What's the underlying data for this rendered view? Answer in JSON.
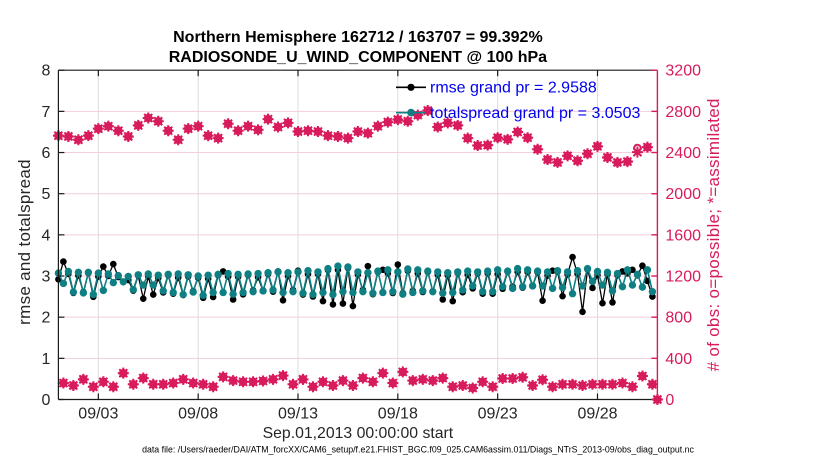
{
  "figure": {
    "title_line1": "Northern Hemisphere 162712 / 163707 = 99.392%",
    "title_line2": "RADIOSONDE_U_WIND_COMPONENT @ 100 hPa",
    "xlabel": "Sep.01,2013 00:00:00 start",
    "ylabel_left": "rmse and totalspread",
    "ylabel_right": "# of obs: o=possible; *=assimilated",
    "footer": "data file: /Users/raeder/DAI/ATM_forcXX/CAM6_setup/f.e21.FHIST_BGC.f09_025.CAM6assim.011/Diags_NTrS_2013-09/obs_diag_output.nc",
    "legend": [
      {
        "label": "rmse grand pr = 2.9588",
        "series": "rmse"
      },
      {
        "label": "totalspread grand pr = 3.0503",
        "series": "totalspread"
      }
    ],
    "colors": {
      "rmse": "#000000",
      "totalspread": "#0e7f83",
      "obs": "#d81b5c",
      "legend_text": "#0000f0",
      "grid_y": "#f5cddb",
      "grid_x": "#dcdcdc",
      "axis": "#1a1a1a",
      "text": "#262626"
    }
  },
  "chart_data": {
    "type": "line",
    "title": "Northern Hemisphere 162712 / 163707 = 99.392%",
    "subtitle": "RADIOSONDE_U_WIND_COMPONENT @ 100 hPa",
    "xlabel": "Sep.01,2013 00:00:00 start",
    "x_axis": {
      "units": "days since Sep.01,2013 00:00:00",
      "range": [
        0,
        30
      ],
      "ticks": [
        2,
        7,
        12,
        17,
        22,
        27
      ],
      "tick_labels": [
        "09/03",
        "09/08",
        "09/13",
        "09/18",
        "09/23",
        "09/28"
      ]
    },
    "y_left": {
      "label": "rmse and totalspread",
      "range": [
        0,
        8
      ],
      "ticks": [
        0,
        1,
        2,
        3,
        4,
        5,
        6,
        7,
        8
      ],
      "grid": true
    },
    "y_right": {
      "label": "# of obs: o=possible; *=assimilated",
      "range": [
        0,
        3200
      ],
      "ticks": [
        0,
        400,
        800,
        1200,
        1600,
        2000,
        2400,
        2800,
        3200
      ]
    },
    "legend_position": "top-center-inside",
    "series": [
      {
        "name": "rmse",
        "grand_pr": 2.9588,
        "axis": "left",
        "color": "#000000",
        "marker": "filled-circle",
        "line": true,
        "t_days": [
          0.0,
          0.25,
          0.5,
          0.75,
          1.0,
          1.25,
          1.5,
          1.75,
          2.0,
          2.25,
          2.5,
          2.75,
          3.0,
          3.25,
          3.5,
          3.75,
          4.0,
          4.25,
          4.5,
          4.75,
          5.0,
          5.25,
          5.5,
          5.75,
          6.0,
          6.25,
          6.5,
          6.75,
          7.0,
          7.25,
          7.5,
          7.75,
          8.0,
          8.25,
          8.5,
          8.75,
          9.0,
          9.25,
          9.5,
          9.75,
          10.0,
          10.25,
          10.5,
          10.75,
          11.0,
          11.25,
          11.5,
          11.75,
          12.0,
          12.25,
          12.5,
          12.75,
          13.0,
          13.25,
          13.5,
          13.75,
          14.0,
          14.25,
          14.5,
          14.75,
          15.0,
          15.25,
          15.5,
          15.75,
          16.0,
          16.25,
          16.5,
          16.75,
          17.0,
          17.25,
          17.5,
          17.75,
          18.0,
          18.25,
          18.5,
          18.75,
          19.0,
          19.25,
          19.5,
          19.75,
          20.0,
          20.25,
          20.5,
          20.75,
          21.0,
          21.25,
          21.5,
          21.75,
          22.0,
          22.25,
          22.5,
          22.75,
          23.0,
          23.25,
          23.5,
          23.75,
          24.0,
          24.25,
          24.5,
          24.75,
          25.0,
          25.25,
          25.5,
          25.75,
          26.0,
          26.25,
          26.5,
          26.75,
          27.0,
          27.25,
          27.5,
          27.75,
          28.0,
          28.25,
          28.5,
          28.75,
          29.0,
          29.25,
          29.5,
          29.75
        ],
        "values": [
          2.92,
          3.35,
          3.053,
          2.59,
          3.012,
          2.614,
          3.07,
          2.494,
          2.987,
          3.23,
          3.001,
          3.29,
          2.974,
          2.857,
          2.901,
          2.644,
          3.006,
          2.45,
          2.984,
          2.55,
          2.95,
          2.601,
          3.017,
          2.57,
          2.962,
          2.538,
          2.99,
          2.634,
          2.955,
          2.471,
          2.935,
          2.49,
          3.019,
          3.11,
          2.986,
          2.43,
          2.979,
          2.554,
          3.023,
          2.651,
          2.97,
          2.631,
          3.048,
          2.62,
          3.11,
          2.41,
          3.0,
          2.66,
          3.13,
          2.55,
          3.048,
          2.502,
          3.049,
          2.39,
          3.146,
          2.31,
          3.151,
          2.33,
          3.194,
          2.27,
          3.037,
          2.662,
          3.24,
          2.558,
          3.098,
          3.15,
          3.063,
          2.587,
          3.28,
          2.586,
          3.128,
          2.64,
          3.063,
          2.612,
          3.098,
          2.628,
          3.028,
          2.43,
          3.017,
          2.39,
          3.074,
          2.607,
          3.031,
          2.7,
          3.066,
          2.57,
          3.069,
          2.57,
          3.05,
          2.691,
          3.1,
          2.742,
          3.1,
          2.718,
          3.096,
          2.753,
          3.088,
          2.4,
          3.01,
          3.13,
          3.103,
          2.51,
          3.039,
          3.46,
          3.056,
          2.13,
          3.159,
          2.71,
          3.025,
          2.34,
          3.045,
          2.36,
          3.02,
          3.11,
          3.062,
          3.15,
          3.017,
          3.25,
          2.88,
          2.5
        ]
      },
      {
        "name": "totalspread",
        "grand_pr": 3.0503,
        "axis": "left",
        "color": "#0e7f83",
        "marker": "filled-circle",
        "line": true,
        "t_days": [
          0.0,
          0.25,
          0.5,
          0.75,
          1.0,
          1.25,
          1.5,
          1.75,
          2.0,
          2.25,
          2.5,
          2.75,
          3.0,
          3.25,
          3.5,
          3.75,
          4.0,
          4.25,
          4.5,
          4.75,
          5.0,
          5.25,
          5.5,
          5.75,
          6.0,
          6.25,
          6.5,
          6.75,
          7.0,
          7.25,
          7.5,
          7.75,
          8.0,
          8.25,
          8.5,
          8.75,
          9.0,
          9.25,
          9.5,
          9.75,
          10.0,
          10.25,
          10.5,
          10.75,
          11.0,
          11.25,
          11.5,
          11.75,
          12.0,
          12.25,
          12.5,
          12.75,
          13.0,
          13.25,
          13.5,
          13.75,
          14.0,
          14.25,
          14.5,
          14.75,
          15.0,
          15.25,
          15.5,
          15.75,
          16.0,
          16.25,
          16.5,
          16.75,
          17.0,
          17.25,
          17.5,
          17.75,
          18.0,
          18.25,
          18.5,
          18.75,
          19.0,
          19.25,
          19.5,
          19.75,
          20.0,
          20.25,
          20.5,
          20.75,
          21.0,
          21.25,
          21.5,
          21.75,
          22.0,
          22.25,
          22.5,
          22.75,
          23.0,
          23.25,
          23.5,
          23.75,
          24.0,
          24.25,
          24.5,
          24.75,
          25.0,
          25.25,
          25.5,
          25.75,
          26.0,
          26.25,
          26.5,
          26.75,
          27.0,
          27.25,
          27.5,
          27.75,
          28.0,
          28.25,
          28.5,
          28.75,
          29.0,
          29.25,
          29.5,
          29.75
        ],
        "values": [
          3.07,
          2.82,
          3.11,
          2.61,
          3.09,
          2.59,
          3.09,
          2.55,
          3.07,
          2.65,
          3.05,
          2.84,
          3.01,
          2.86,
          2.99,
          2.67,
          3.03,
          2.78,
          3.05,
          2.78,
          3.02,
          2.64,
          3.04,
          2.6,
          3.05,
          2.55,
          3.03,
          2.61,
          3.0,
          2.53,
          3.02,
          2.6,
          3.04,
          2.6,
          3.06,
          2.56,
          3.04,
          2.6,
          3.05,
          2.62,
          3.06,
          2.64,
          3.08,
          2.66,
          3.1,
          2.6,
          3.08,
          2.62,
          3.1,
          2.58,
          3.13,
          2.55,
          3.1,
          2.6,
          3.18,
          2.55,
          3.24,
          2.62,
          3.22,
          2.6,
          3.1,
          2.62,
          3.08,
          2.58,
          3.12,
          2.6,
          3.15,
          2.62,
          3.1,
          2.56,
          3.17,
          2.6,
          3.15,
          2.64,
          3.12,
          2.62,
          3.1,
          2.58,
          3.08,
          2.6,
          3.1,
          2.66,
          3.12,
          2.76,
          3.1,
          2.62,
          3.12,
          2.62,
          3.15,
          2.74,
          3.12,
          2.7,
          3.18,
          2.74,
          3.15,
          2.76,
          3.12,
          2.76,
          3.1,
          2.7,
          3.13,
          2.72,
          3.1,
          2.57,
          3.13,
          2.76,
          3.18,
          2.87,
          3.11,
          2.78,
          3.09,
          2.64,
          3.06,
          2.74,
          3.15,
          2.78,
          3.04,
          2.73,
          3.15,
          2.62
        ]
      },
      {
        "name": "obs_possible",
        "axis": "right",
        "color": "#d81b5c",
        "marker": "circle",
        "line": false,
        "t_days": [
          0.0,
          0.25,
          0.5,
          0.75,
          1.0,
          1.25,
          1.5,
          1.75,
          2.0,
          2.25,
          2.5,
          2.75,
          3.0,
          3.25,
          3.5,
          3.75,
          4.0,
          4.25,
          4.5,
          4.75,
          5.0,
          5.25,
          5.5,
          5.75,
          6.0,
          6.25,
          6.5,
          6.75,
          7.0,
          7.25,
          7.5,
          7.75,
          8.0,
          8.25,
          8.5,
          8.75,
          9.0,
          9.25,
          9.5,
          9.75,
          10.0,
          10.25,
          10.5,
          10.75,
          11.0,
          11.25,
          11.5,
          11.75,
          12.0,
          12.25,
          12.5,
          12.75,
          13.0,
          13.25,
          13.5,
          13.75,
          14.0,
          14.25,
          14.5,
          14.75,
          15.0,
          15.25,
          15.5,
          15.75,
          16.0,
          16.25,
          16.5,
          16.75,
          17.0,
          17.25,
          17.5,
          17.75,
          18.0,
          18.25,
          18.5,
          18.75,
          19.0,
          19.25,
          19.5,
          19.75,
          20.0,
          20.25,
          20.5,
          20.75,
          21.0,
          21.25,
          21.5,
          21.75,
          22.0,
          22.25,
          22.5,
          22.75,
          23.0,
          23.25,
          23.5,
          23.75,
          24.0,
          24.25,
          24.5,
          24.75,
          25.0,
          25.25,
          25.5,
          25.75,
          26.0,
          26.25,
          26.5,
          26.75,
          27.0,
          27.25,
          27.5,
          27.75,
          28.0,
          28.25,
          28.5,
          28.75,
          29.0,
          29.25,
          29.5,
          29.75,
          30.0
        ],
        "values": [
          2564,
          160,
          2556,
          136,
          2524,
          196,
          2564,
          124,
          2632,
          172,
          2656,
          124,
          2612,
          256,
          2556,
          148,
          2664,
          208,
          2736,
          148,
          2704,
          148,
          2612,
          160,
          2524,
          196,
          2632,
          160,
          2656,
          148,
          2564,
          124,
          2540,
          220,
          2680,
          184,
          2612,
          172,
          2656,
          172,
          2620,
          180,
          2724,
          196,
          2648,
          232,
          2688,
          148,
          2604,
          196,
          2612,
          124,
          2604,
          172,
          2564,
          136,
          2556,
          184,
          2540,
          136,
          2604,
          208,
          2588,
          172,
          2656,
          256,
          2696,
          160,
          2720,
          268,
          2704,
          184,
          2764,
          196,
          2808,
          184,
          2648,
          208,
          2688,
          124,
          2664,
          136,
          2540,
          112,
          2468,
          172,
          2472,
          124,
          2544,
          204,
          2528,
          204,
          2600,
          216,
          2544,
          136,
          2432,
          192,
          2332,
          124,
          2304,
          148,
          2368,
          148,
          2320,
          136,
          2388,
          148,
          2460,
          148,
          2352,
          148,
          2304,
          160,
          2312,
          124,
          2444,
          228,
          2452,
          148,
          0
        ]
      },
      {
        "name": "obs_assimilated",
        "axis": "right",
        "color": "#d81b5c",
        "marker": "asterisk",
        "line": false,
        "t_days": [
          0.0,
          0.25,
          0.5,
          0.75,
          1.0,
          1.25,
          1.5,
          1.75,
          2.0,
          2.25,
          2.5,
          2.75,
          3.0,
          3.25,
          3.5,
          3.75,
          4.0,
          4.25,
          4.5,
          4.75,
          5.0,
          5.25,
          5.5,
          5.75,
          6.0,
          6.25,
          6.5,
          6.75,
          7.0,
          7.25,
          7.5,
          7.75,
          8.0,
          8.25,
          8.5,
          8.75,
          9.0,
          9.25,
          9.5,
          9.75,
          10.0,
          10.25,
          10.5,
          10.75,
          11.0,
          11.25,
          11.5,
          11.75,
          12.0,
          12.25,
          12.5,
          12.75,
          13.0,
          13.25,
          13.5,
          13.75,
          14.0,
          14.25,
          14.5,
          14.75,
          15.0,
          15.25,
          15.5,
          15.75,
          16.0,
          16.25,
          16.5,
          16.75,
          17.0,
          17.25,
          17.5,
          17.75,
          18.0,
          18.25,
          18.5,
          18.75,
          19.0,
          19.25,
          19.5,
          19.75,
          20.0,
          20.25,
          20.5,
          20.75,
          21.0,
          21.25,
          21.5,
          21.75,
          22.0,
          22.25,
          22.5,
          22.75,
          23.0,
          23.25,
          23.5,
          23.75,
          24.0,
          24.25,
          24.5,
          24.75,
          25.0,
          25.25,
          25.5,
          25.75,
          26.0,
          26.25,
          26.5,
          26.75,
          27.0,
          27.25,
          27.5,
          27.75,
          28.0,
          28.25,
          28.5,
          28.75,
          29.0,
          29.25,
          29.5,
          29.75,
          30.0
        ],
        "values": [
          2564,
          160,
          2556,
          136,
          2524,
          196,
          2564,
          124,
          2632,
          172,
          2656,
          124,
          2612,
          256,
          2556,
          148,
          2664,
          208,
          2736,
          148,
          2704,
          148,
          2612,
          160,
          2524,
          196,
          2632,
          160,
          2656,
          148,
          2564,
          124,
          2540,
          220,
          2680,
          184,
          2612,
          172,
          2656,
          172,
          2620,
          180,
          2724,
          196,
          2648,
          232,
          2688,
          148,
          2604,
          196,
          2612,
          124,
          2604,
          172,
          2564,
          136,
          2556,
          184,
          2540,
          136,
          2604,
          208,
          2588,
          172,
          2656,
          256,
          2696,
          160,
          2720,
          268,
          2704,
          184,
          2764,
          196,
          2808,
          184,
          2648,
          208,
          2688,
          124,
          2664,
          136,
          2540,
          112,
          2468,
          172,
          2472,
          124,
          2544,
          204,
          2528,
          204,
          2600,
          216,
          2544,
          136,
          2432,
          192,
          2332,
          124,
          2304,
          148,
          2368,
          148,
          2320,
          136,
          2388,
          148,
          2460,
          148,
          2352,
          148,
          2304,
          160,
          2312,
          124,
          2404,
          228,
          2452,
          148,
          0
        ]
      }
    ]
  }
}
